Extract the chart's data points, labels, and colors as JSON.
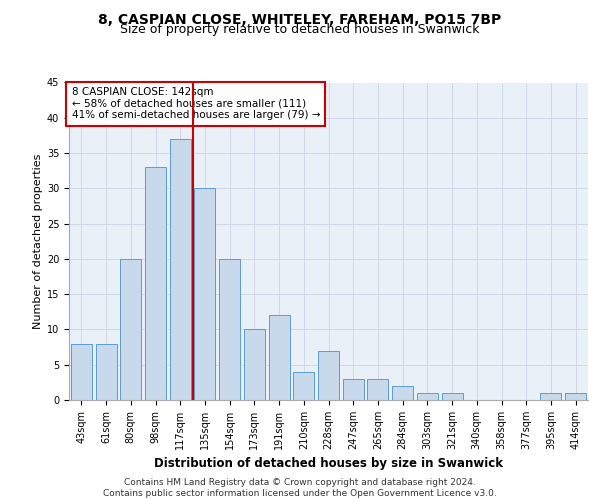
{
  "title1": "8, CASPIAN CLOSE, WHITELEY, FAREHAM, PO15 7BP",
  "title2": "Size of property relative to detached houses in Swanwick",
  "xlabel": "Distribution of detached houses by size in Swanwick",
  "ylabel": "Number of detached properties",
  "categories": [
    "43sqm",
    "61sqm",
    "80sqm",
    "98sqm",
    "117sqm",
    "135sqm",
    "154sqm",
    "173sqm",
    "191sqm",
    "210sqm",
    "228sqm",
    "247sqm",
    "265sqm",
    "284sqm",
    "303sqm",
    "321sqm",
    "340sqm",
    "358sqm",
    "377sqm",
    "395sqm",
    "414sqm"
  ],
  "values": [
    8,
    8,
    20,
    33,
    37,
    30,
    20,
    10,
    12,
    4,
    7,
    3,
    3,
    2,
    1,
    1,
    0,
    0,
    0,
    1,
    1
  ],
  "bar_color": "#c8d9eb",
  "bar_edgecolor": "#5b9bd5",
  "vline_index": 4.5,
  "vline_color": "#cc0000",
  "annotation_text": "8 CASPIAN CLOSE: 142sqm\n← 58% of detached houses are smaller (111)\n41% of semi-detached houses are larger (79) →",
  "annotation_box_color": "#ffffff",
  "annotation_box_edgecolor": "#cc0000",
  "ylim": [
    0,
    45
  ],
  "yticks": [
    0,
    5,
    10,
    15,
    20,
    25,
    30,
    35,
    40,
    45
  ],
  "grid_color": "#d0d8e8",
  "bg_color": "#eaf0f8",
  "footer": "Contains HM Land Registry data © Crown copyright and database right 2024.\nContains public sector information licensed under the Open Government Licence v3.0.",
  "title1_fontsize": 10,
  "title2_fontsize": 9,
  "xlabel_fontsize": 8.5,
  "ylabel_fontsize": 8,
  "tick_fontsize": 7,
  "annot_fontsize": 7.5,
  "footer_fontsize": 6.5
}
